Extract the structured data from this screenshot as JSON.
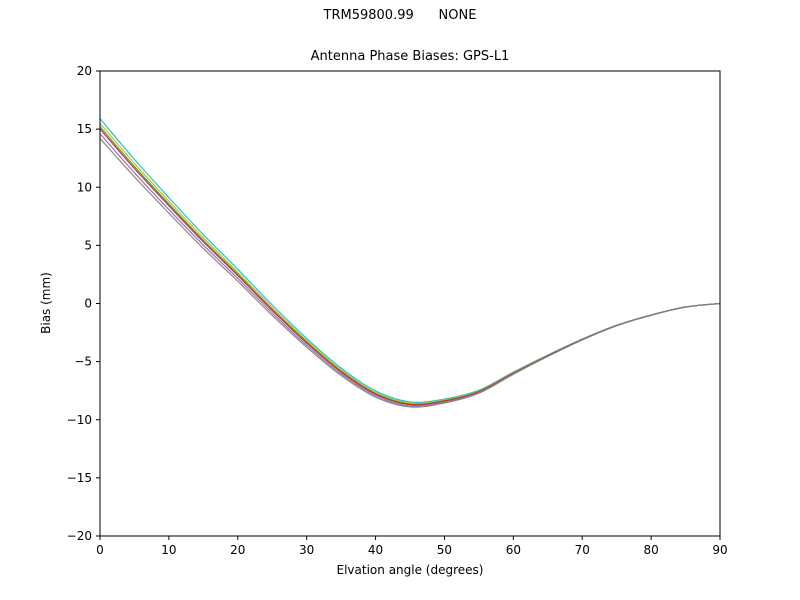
{
  "header": {
    "title": "TRM59800.99      NONE"
  },
  "chart_data": {
    "type": "line",
    "title": "Antenna Phase Biases: GPS-L1",
    "xlabel": "Elvation angle (degrees)",
    "ylabel": "Bias (mm)",
    "xlim": [
      0,
      90
    ],
    "ylim": [
      -20,
      20
    ],
    "xticks": [
      0,
      10,
      20,
      30,
      40,
      50,
      60,
      70,
      80,
      90
    ],
    "yticks": [
      -20,
      -15,
      -10,
      -5,
      0,
      5,
      10,
      15,
      20
    ],
    "grid": false,
    "legend": "none",
    "x": [
      0,
      5,
      10,
      15,
      20,
      25,
      30,
      35,
      40,
      45,
      50,
      55,
      60,
      65,
      70,
      75,
      80,
      85,
      90
    ],
    "series": [
      {
        "name": "trace-1",
        "color": "#17becf",
        "values": [
          15.9,
          12.4,
          9.11,
          5.92,
          2.94,
          -0.13,
          -3.0,
          -5.56,
          -7.52,
          -8.47,
          -8.22,
          -7.46,
          -5.9,
          -4.43,
          -3.06,
          -1.87,
          -0.99,
          -0.3,
          0.0
        ]
      },
      {
        "name": "trace-2",
        "color": "#bcbd22",
        "values": [
          15.5,
          12.05,
          8.8,
          5.65,
          2.7,
          -0.34,
          -3.18,
          -5.71,
          -7.65,
          -8.57,
          -8.3,
          -7.52,
          -5.94,
          -4.46,
          -3.08,
          -1.89,
          -0.99,
          -0.3,
          0.0
        ]
      },
      {
        "name": "trace-3",
        "color": "#2ca02c",
        "values": [
          15.2,
          11.78,
          8.56,
          5.44,
          2.52,
          -0.5,
          -3.31,
          -5.83,
          -7.74,
          -8.65,
          -8.36,
          -7.57,
          -5.98,
          -4.48,
          -3.09,
          -1.89,
          -1.0,
          -0.3,
          0.0
        ]
      },
      {
        "name": "trace-4",
        "color": "#d62728",
        "values": [
          15.0,
          11.6,
          8.4,
          5.3,
          2.4,
          -0.6,
          -3.4,
          -5.9,
          -7.8,
          -8.7,
          -8.4,
          -7.6,
          -6.0,
          -4.5,
          -3.1,
          -1.9,
          -1.0,
          -0.3,
          0.0
        ]
      },
      {
        "name": "trace-5",
        "color": "#9467bd",
        "values": [
          14.6,
          11.24,
          8.08,
          5.02,
          2.16,
          -0.81,
          -3.58,
          -6.05,
          -7.92,
          -8.8,
          -8.48,
          -7.66,
          -6.04,
          -4.53,
          -3.12,
          -1.91,
          -1.0,
          -0.3,
          0.0
        ]
      },
      {
        "name": "trace-6",
        "color": "#7f7f7f",
        "values": [
          14.2,
          10.89,
          7.77,
          4.74,
          1.92,
          -1.02,
          -3.76,
          -6.2,
          -8.05,
          -8.9,
          -8.56,
          -7.72,
          -6.09,
          -4.56,
          -3.14,
          -1.92,
          -1.01,
          -0.3,
          0.0
        ]
      }
    ]
  }
}
